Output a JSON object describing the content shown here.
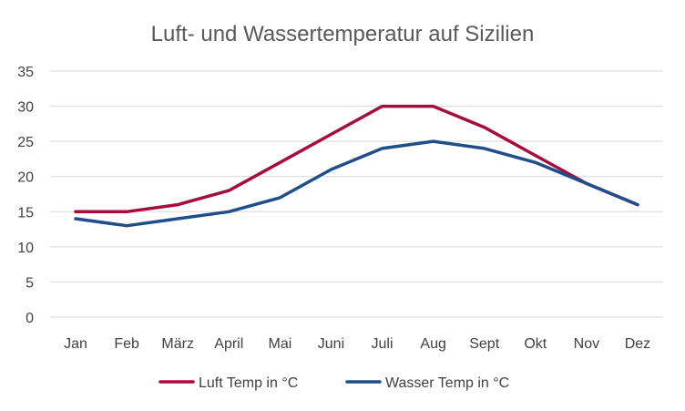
{
  "chart_data": {
    "type": "line",
    "title": "Luft- und Wassertemperatur auf Sizilien",
    "xlabel": "",
    "ylabel": "",
    "categories": [
      "Jan",
      "Feb",
      "März",
      "April",
      "Mai",
      "Juni",
      "Juli",
      "Aug",
      "Sept",
      "Okt",
      "Nov",
      "Dez"
    ],
    "series": [
      {
        "name": "Luft Temp in °C",
        "color": "#a50e3c",
        "values": [
          15,
          15,
          16,
          18,
          22,
          26,
          30,
          30,
          27,
          23,
          19,
          16
        ]
      },
      {
        "name": "Wasser Temp in °C",
        "color": "#1f4e8c",
        "values": [
          14,
          13,
          14,
          15,
          17,
          21,
          24,
          25,
          24,
          22,
          19,
          16
        ]
      }
    ],
    "ylim": [
      0,
      35
    ],
    "yticks": [
      0,
      5,
      10,
      15,
      20,
      25,
      30,
      35
    ],
    "grid": true,
    "legend": "bottom"
  }
}
